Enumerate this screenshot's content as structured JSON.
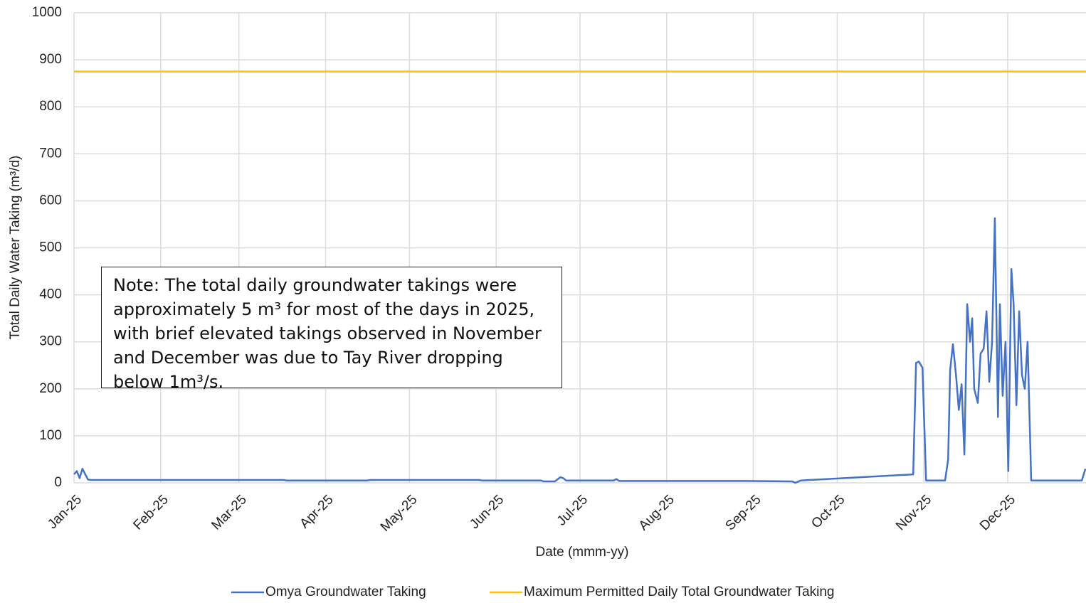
{
  "chart_data": {
    "type": "line",
    "ylabel": "Total Daily Water Taking (m³/d)",
    "xlabel": "Date (mmm-yy)",
    "annotation": "Note: The total daily groundwater takings were approximately 5 m³ for most of the days in 2025, with brief elevated takings observed in November and December was due to Tay River dropping below 1m³/s.",
    "xlim": [
      0,
      362
    ],
    "ylim": [
      0,
      1000
    ],
    "yticks": [
      0,
      100,
      200,
      300,
      400,
      500,
      600,
      700,
      800,
      900,
      1000
    ],
    "xticks": [
      {
        "value": 0,
        "label": "Jan-25"
      },
      {
        "value": 31,
        "label": "Feb-25"
      },
      {
        "value": 59,
        "label": "Mar-25"
      },
      {
        "value": 90,
        "label": "Apr-25"
      },
      {
        "value": 120,
        "label": "May-25"
      },
      {
        "value": 151,
        "label": "Jun-25"
      },
      {
        "value": 181,
        "label": "Jul-25"
      },
      {
        "value": 212,
        "label": "Aug-25"
      },
      {
        "value": 243,
        "label": "Sep-25"
      },
      {
        "value": 273,
        "label": "Oct-25"
      },
      {
        "value": 304,
        "label": "Nov-25"
      },
      {
        "value": 334,
        "label": "Dec-25"
      }
    ],
    "grid": true,
    "legend": "bottom",
    "series": [
      {
        "name": "Omya Groundwater Taking",
        "color": "#4472c4",
        "x": [
          0,
          1,
          2,
          3,
          5,
          6,
          75,
          76,
          105,
          106,
          145,
          146,
          167,
          168,
          172,
          174,
          175,
          176,
          193,
          194,
          195,
          240,
          257,
          258,
          260,
          300.2,
          301.2,
          302.2,
          303.5,
          304.8,
          311.6,
          312.7,
          313.4,
          314.4,
          315.5,
          316.5,
          317.5,
          318.5,
          319.5,
          320.5,
          321.3,
          322,
          323.3,
          324.3,
          325.4,
          326.4,
          327.4,
          328.4,
          329.4,
          330.5,
          331.2,
          332.2,
          333.2,
          334.2,
          335.3,
          336.1,
          337.1,
          338.1,
          339.1,
          340.1,
          341.1,
          342.4,
          360.5,
          361.8
        ],
        "values": [
          18,
          25,
          10,
          30,
          7,
          6,
          6,
          5,
          5,
          6,
          6,
          5,
          5,
          3,
          3,
          12,
          10,
          5,
          5,
          8,
          4,
          4,
          3,
          0,
          5,
          18,
          255,
          258,
          245,
          5,
          5,
          50,
          240,
          295,
          230,
          155,
          210,
          60,
          380,
          300,
          350,
          200,
          170,
          275,
          285,
          365,
          215,
          300,
          563,
          140,
          380,
          185,
          300,
          25,
          455,
          380,
          165,
          365,
          230,
          200,
          300,
          5,
          5,
          30
        ]
      },
      {
        "name": "Maximum Permitted Daily Total Groundwater Taking",
        "color": "#ffc000",
        "x": [
          0,
          362
        ],
        "values": [
          875,
          875
        ]
      }
    ]
  }
}
